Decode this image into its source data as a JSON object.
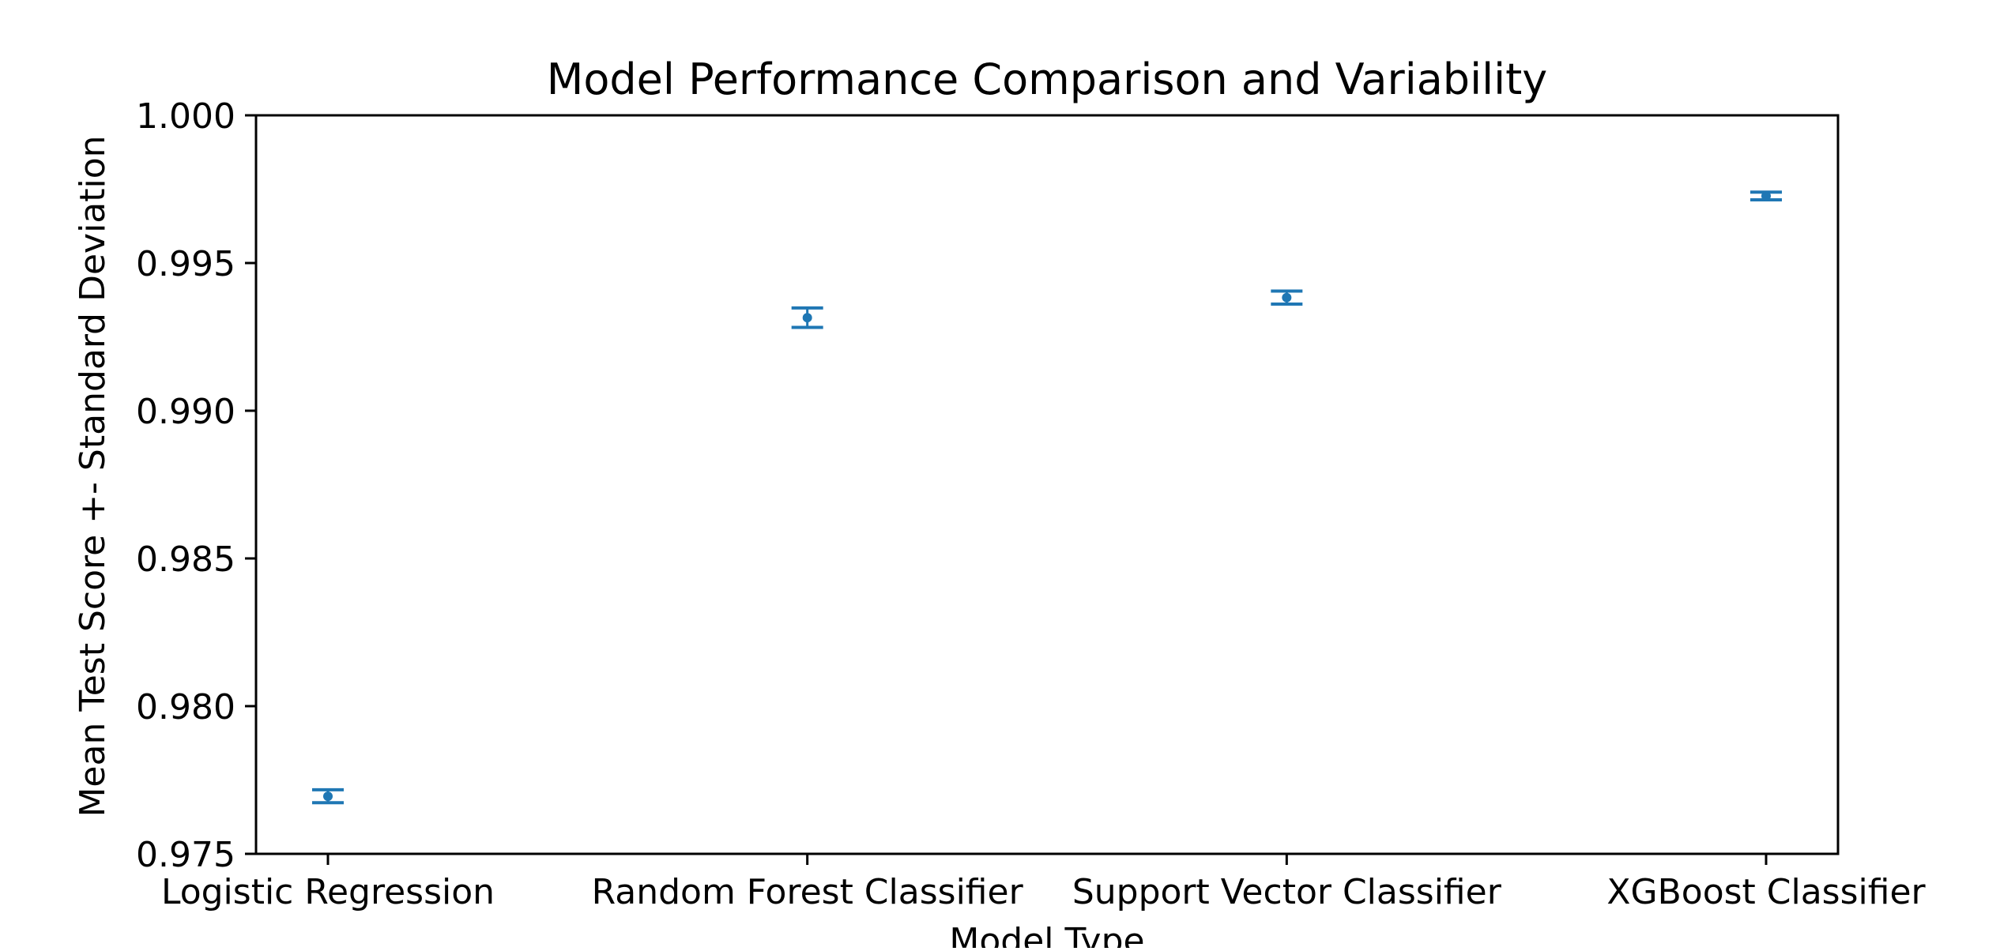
{
  "chart_data": {
    "type": "errorbar",
    "title": "Model Performance Comparison and Variability",
    "xlabel": "Model Type",
    "ylabel": "Mean Test Score +- Standard Deviation",
    "categories": [
      "Logistic Regression",
      "Random Forest Classifier",
      "Support Vector Classifier",
      "XGBoost Classifier"
    ],
    "values": [
      0.97695,
      0.99315,
      0.99383,
      0.99727
    ],
    "errors": [
      0.00022,
      0.00033,
      0.00022,
      0.00013
    ],
    "ylim": [
      0.975,
      1.0
    ],
    "yticks": [
      0.975,
      0.98,
      0.985,
      0.99,
      0.995,
      1.0
    ],
    "ytick_labels": [
      "0.975",
      "0.980",
      "0.985",
      "0.990",
      "0.995",
      "1.000"
    ],
    "grid": false,
    "legend": "none",
    "color": "#1f77b4"
  }
}
